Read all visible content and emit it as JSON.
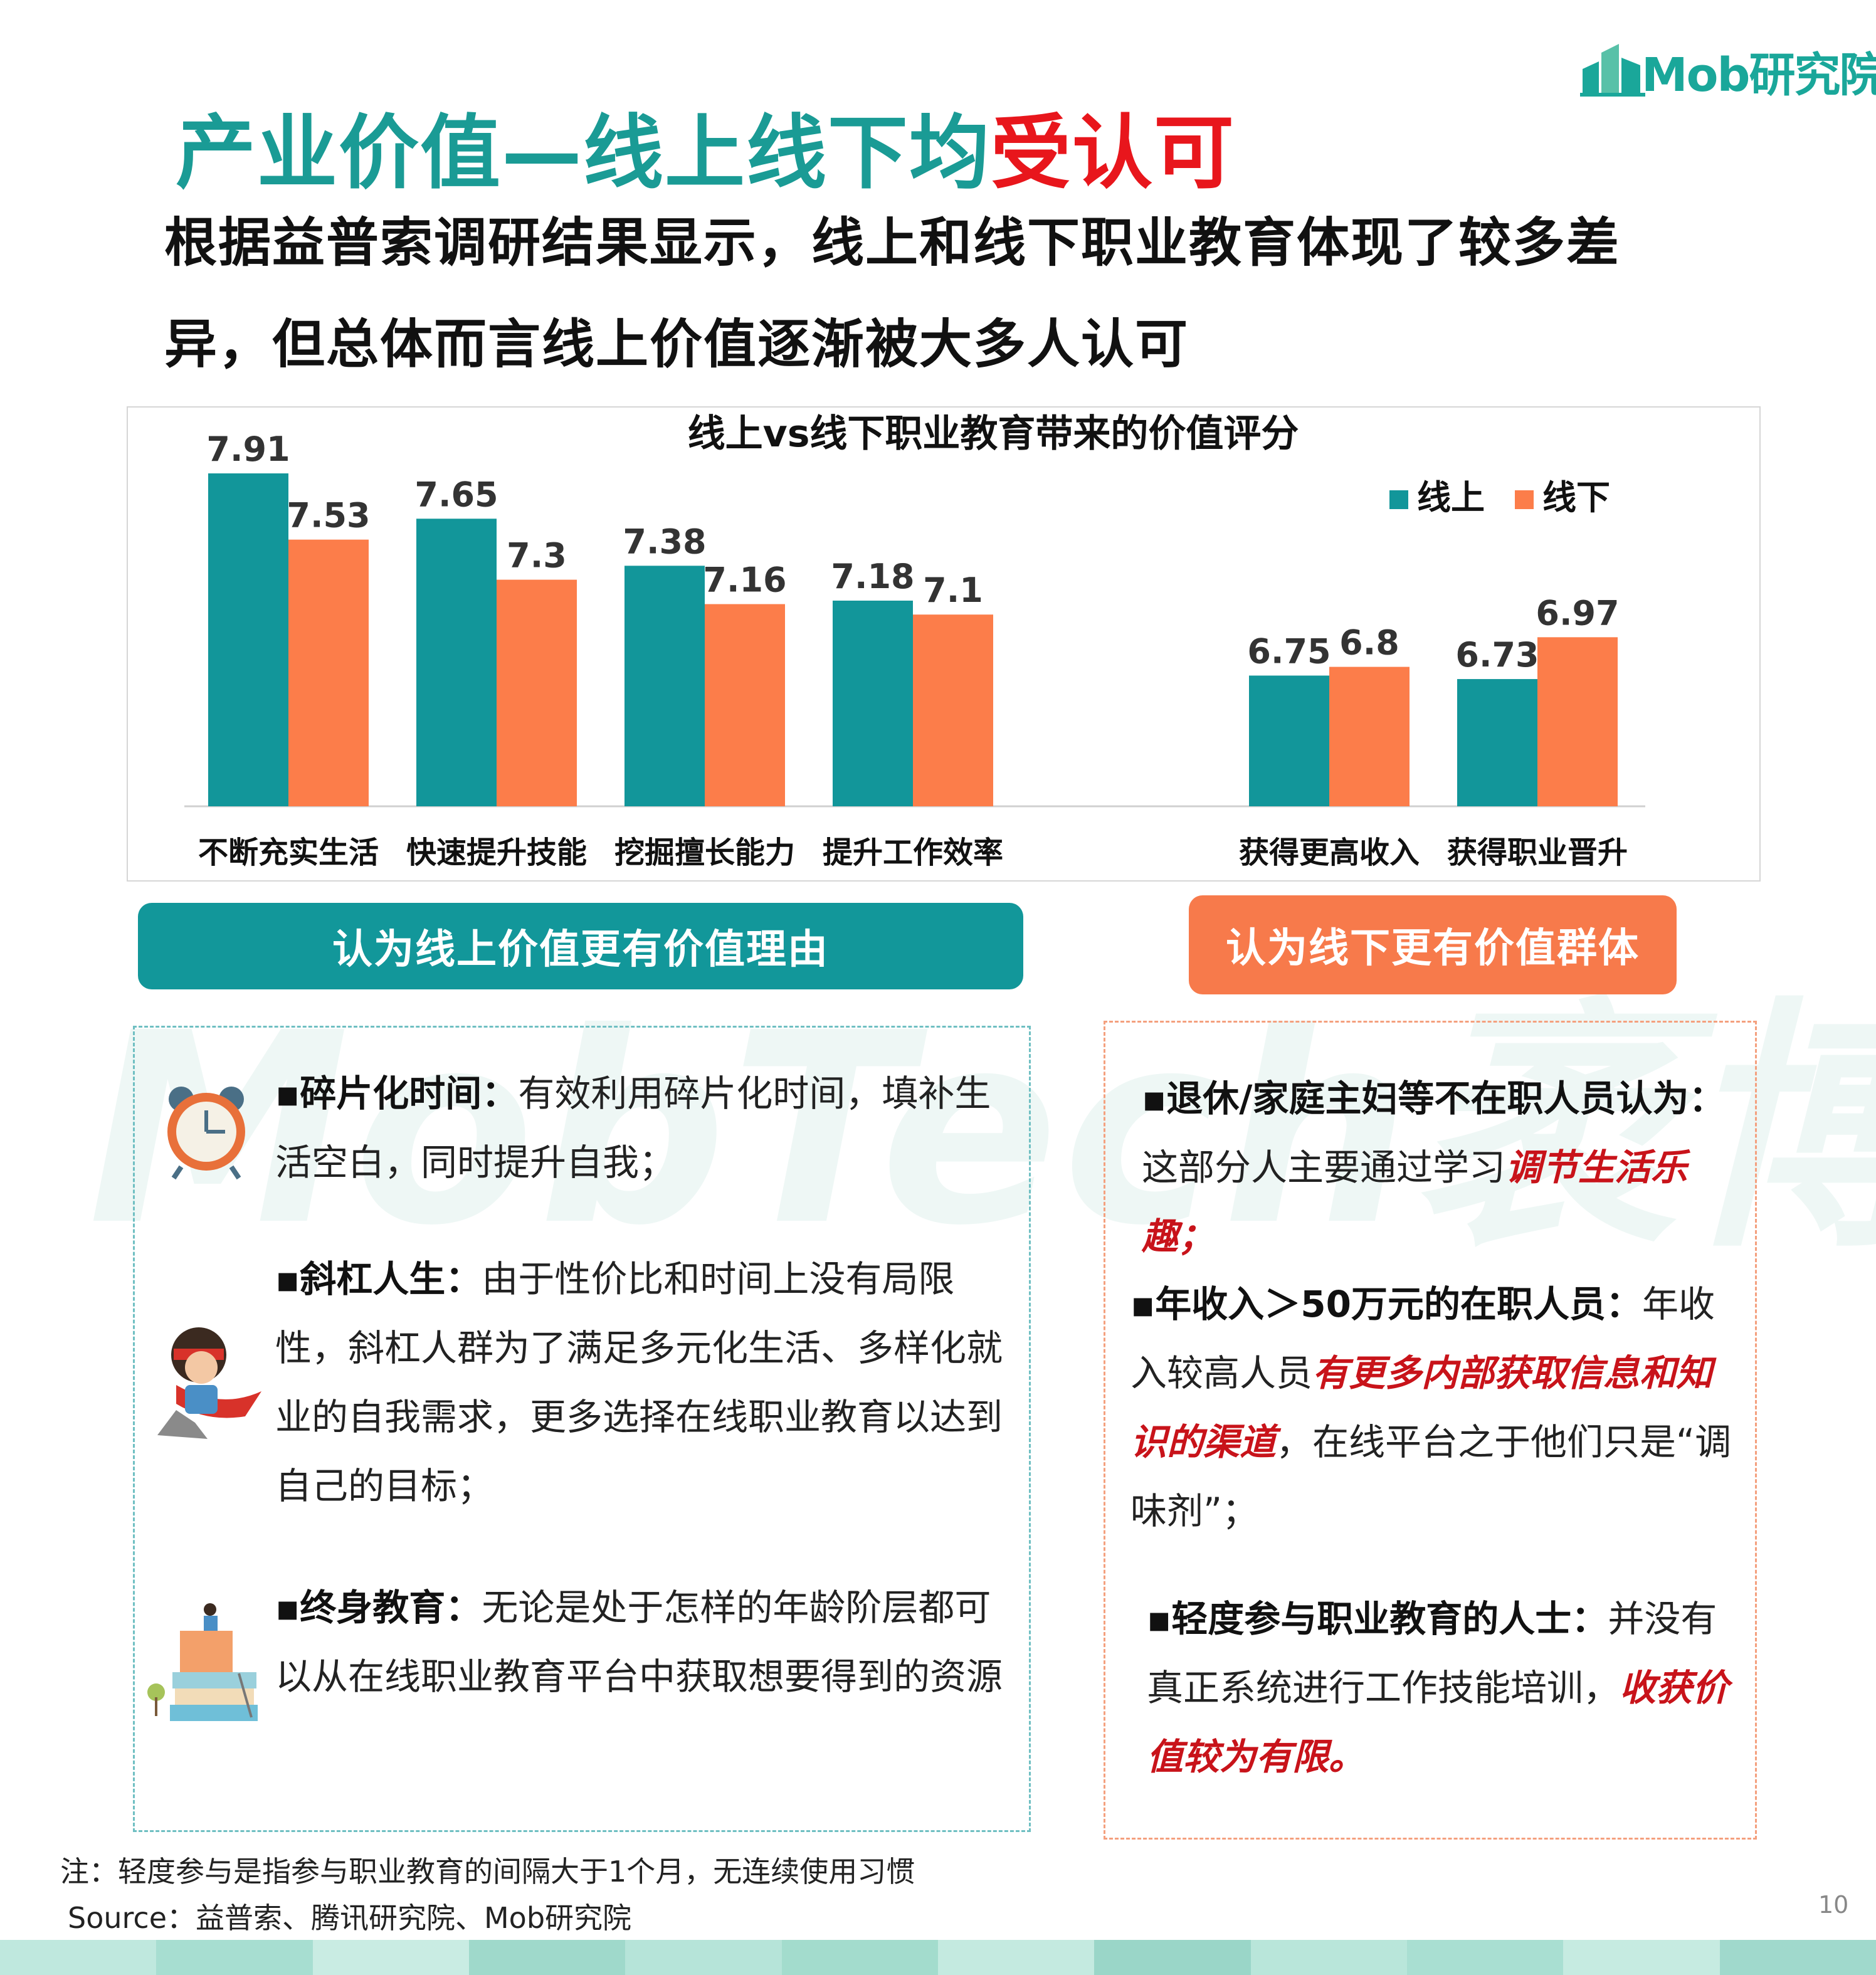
{
  "brand": {
    "logo_text": "Mob研究院"
  },
  "header": {
    "title_main": "产业价值—线上线下均",
    "title_accent": "受认可",
    "subtitle": "根据益普索调研结果显示，线上和线下职业教育体现了较多差异，但总体而言线上价值逐渐被大多人认可"
  },
  "colors": {
    "teal": "#12969a",
    "orange": "#fc7d4a",
    "red": "#c8131a"
  },
  "chart_data": {
    "type": "bar",
    "title": "线上vs线下职业教育带来的价值评分",
    "categories": [
      "不断充实生活",
      "快速提升技能",
      "挖掘擅长能力",
      "提升工作效率",
      "",
      "获得更高收入",
      "获得职业晋升"
    ],
    "series": [
      {
        "name": "线上",
        "color": "#12969a",
        "values": [
          7.91,
          7.65,
          7.38,
          7.18,
          null,
          6.75,
          6.73
        ]
      },
      {
        "name": "线下",
        "color": "#fc7d4a",
        "values": [
          7.53,
          7.3,
          7.16,
          7.1,
          null,
          6.8,
          6.97
        ]
      }
    ],
    "legend_position": "top-right",
    "grid": false,
    "ylim": [
      6.0,
      8.0
    ]
  },
  "sections": {
    "online_header": "认为线上价值更有价值理由",
    "offline_header": "认为线下更有价值群体"
  },
  "left_items": [
    {
      "icon": "alarm-clock-icon",
      "head": "▪碎片化时间：",
      "body": "有效利用碎片化时间，填补生活空白，同时提升自我；"
    },
    {
      "icon": "superhero-icon",
      "head": "▪斜杠人生：",
      "body": "由于性价比和时间上没有局限性，斜杠人群为了满足多元化生活、多样化就业的自我需求，更多选择在线职业教育以达到自己的目标；"
    },
    {
      "icon": "book-stack-icon",
      "head": "▪终身教育：",
      "body": "无论是处于怎样的年龄阶层都可以从在线职业教育平台中获取想要得到的资源"
    }
  ],
  "right_items": [
    {
      "head": "▪退休/家庭主妇等不在职人员认为：",
      "pre": "这部分人主要通过学习",
      "em": "调节生活乐趣；",
      "post": ""
    },
    {
      "head": "▪年收入＞50万元的在职人员：",
      "pre": "年收入较高人员",
      "em": "有更多内部获取信息和知识的渠道",
      "post": "，在线平台之于他们只是“调味剂”；"
    },
    {
      "head": "▪轻度参与职业教育的人士：",
      "pre": "并没有真正系统进行工作技能培训，",
      "em": "收获价值较为有限。",
      "post": ""
    }
  ],
  "notes": {
    "note": "注：轻度参与是指参与职业教育的间隔大于1个月，无连续使用习惯",
    "source": "Source：益普索、腾讯研究院、Mob研究院"
  },
  "page_number": "10"
}
